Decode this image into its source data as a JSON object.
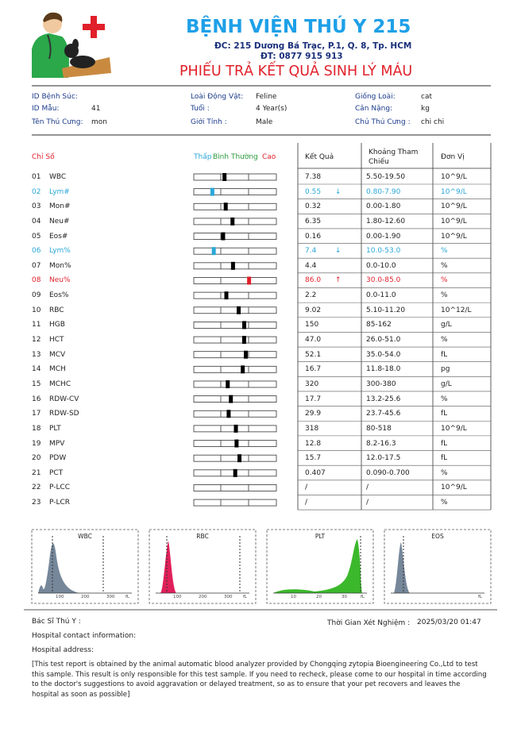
{
  "header": {
    "hospital_name": "BỆNH VIỆN THÚ Y 215",
    "address": "ĐC: 215 Dương Bá Trạc, P.1, Q. 8, Tp. HCM",
    "phone": "ĐT: 0877 915 913",
    "report_title": "PHIẾU TRẢ KẾT QUẢ SINH LÝ MÁU"
  },
  "patient_info": [
    [
      {
        "label": "ID Bệnh Súc:"
      },
      {
        "label": "ID Mẫu:",
        "value": "41"
      },
      {
        "label": "Tên Thú Cưng:",
        "value": "mon"
      }
    ],
    [
      {
        "label": "Loài Động Vật:",
        "value": "Feline"
      },
      {
        "label": "Tuổi :",
        "value": "4 Year(s)"
      },
      {
        "label": "Giới Tính :",
        "value": "Male"
      }
    ],
    [
      {
        "label": "Giống Loài:",
        "value": "cat"
      },
      {
        "label": "Cân Nặng:",
        "value": "kg"
      },
      {
        "label": "Chủ Thú Cưng :",
        "value": "chi chi"
      }
    ]
  ],
  "results_table": {
    "headers": {
      "index": "Chỉ Số",
      "low": "Thấp",
      "normal": "Bình Thường",
      "high": "Cao",
      "result": "Kết Quả",
      "reference": "Khoảng Tham Chiếu",
      "unit": "Đơn Vị"
    },
    "rows": [
      {
        "no": "01",
        "name": "WBC",
        "result": "7.38",
        "reference": "5.50-19.50",
        "unit": "10^9/L"
      },
      {
        "no": "02",
        "name": "Lym#",
        "result": "0.55",
        "flag": "↓",
        "status": "low",
        "reference": "0.80-7.90",
        "unit": "10^9/L"
      },
      {
        "no": "03",
        "name": "Mon#",
        "result": "0.32",
        "reference": "0.00-1.80",
        "unit": "10^9/L"
      },
      {
        "no": "04",
        "name": "Neu#",
        "result": "6.35",
        "reference": "1.80-12.60",
        "unit": "10^9/L"
      },
      {
        "no": "05",
        "name": "Eos#",
        "result": "0.16",
        "reference": "0.00-1.90",
        "unit": "10^9/L"
      },
      {
        "no": "06",
        "name": "Lym%",
        "result": "7.4",
        "flag": "↓",
        "status": "low",
        "reference": "10.0-53.0",
        "unit": "%"
      },
      {
        "no": "07",
        "name": "Mon%",
        "result": "4.4",
        "reference": "0.0-10.0",
        "unit": "%"
      },
      {
        "no": "08",
        "name": "Neu%",
        "result": "86.0",
        "flag": "↑",
        "status": "high",
        "reference": "30.0-85.0",
        "unit": "%"
      },
      {
        "no": "09",
        "name": "Eos%",
        "result": "2.2",
        "reference": "0.0-11.0",
        "unit": "%"
      },
      {
        "no": "10",
        "name": "RBC",
        "result": "9.02",
        "reference": "5.10-11.20",
        "unit": "10^12/L"
      },
      {
        "no": "11",
        "name": "HGB",
        "result": "150",
        "reference": "85-162",
        "unit": "g/L"
      },
      {
        "no": "12",
        "name": "HCT",
        "result": "47.0",
        "reference": "26.0-51.0",
        "unit": "%"
      },
      {
        "no": "13",
        "name": "MCV",
        "result": "52.1",
        "reference": "35.0-54.0",
        "unit": "fL"
      },
      {
        "no": "14",
        "name": "MCH",
        "result": "16.7",
        "reference": "11.8-18.0",
        "unit": "pg"
      },
      {
        "no": "15",
        "name": "MCHC",
        "result": "320",
        "reference": "300-380",
        "unit": "g/L"
      },
      {
        "no": "16",
        "name": "RDW-CV",
        "result": "17.7",
        "reference": "13.2-25.6",
        "unit": "%"
      },
      {
        "no": "17",
        "name": "RDW-SD",
        "result": "29.9",
        "reference": "23.7-45.6",
        "unit": "fL"
      },
      {
        "no": "18",
        "name": "PLT",
        "result": "318",
        "reference": "80-518",
        "unit": "10^9/L"
      },
      {
        "no": "19",
        "name": "MPV",
        "result": "12.8",
        "reference": "8.2-16.3",
        "unit": "fL"
      },
      {
        "no": "20",
        "name": "PDW",
        "result": "15.7",
        "reference": "12.0-17.5",
        "unit": "fL"
      },
      {
        "no": "21",
        "name": "PCT",
        "result": "0.407",
        "reference": "0.090-0.700",
        "unit": "%"
      },
      {
        "no": "22",
        "name": "P-LCC",
        "result": "/",
        "reference": "/",
        "unit": "10^9/L"
      },
      {
        "no": "23",
        "name": "P-LCR",
        "result": "/",
        "reference": "/",
        "unit": "%"
      }
    ]
  },
  "histograms": [
    {
      "title": "WBC",
      "axis_labels": [
        "100",
        "200",
        "300",
        "fL"
      ]
    },
    {
      "title": "RBC",
      "axis_labels": [
        "100",
        "200",
        "300",
        "fL"
      ]
    },
    {
      "title": "PLT",
      "axis_labels": [
        "10",
        "20",
        "30",
        "fL"
      ]
    },
    {
      "title": "EOS",
      "axis_labels": [
        "fL"
      ]
    }
  ],
  "footer": {
    "doctor_label": "Bác Sĩ Thú Y :",
    "test_time_label": "Thời Gian Xét Nghiệm :",
    "test_time": "2025/03/20 01:47",
    "contact_label": "Hospital contact information:",
    "address_label": "Hospital address:",
    "disclaimer": "[This test report is obtained by the animal automatic blood analyzer provided by Chongqing zytopia Bioengineering Co.,Ltd to test this sample. This result is only responsible for this test sample. If you need to recheck, please come to our hospital in time according to the doctor's suggestions to avoid aggravation or delayed treatment, so as to ensure that your pet recovers and leaves the hospital as soon as possible]"
  }
}
